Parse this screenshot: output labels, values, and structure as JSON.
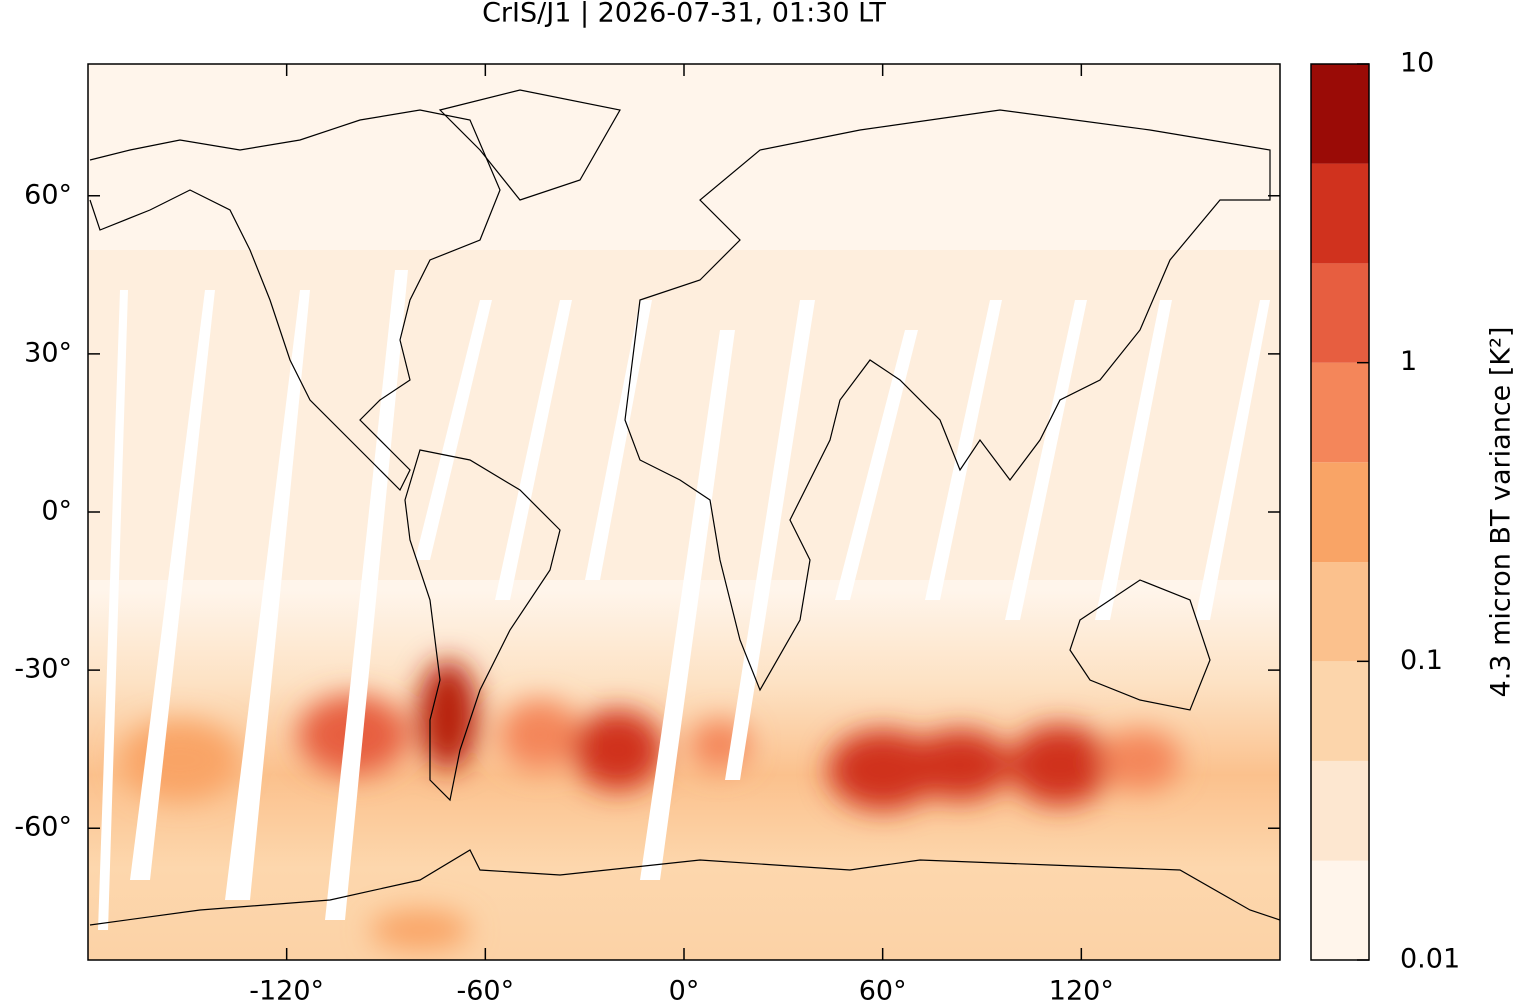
{
  "chart_data": {
    "type": "map",
    "title": "CrIS/J1 | 2026-07-31, 01:30 LT",
    "xlim": [
      -180,
      180
    ],
    "ylim": [
      -85,
      85
    ],
    "xticks": [
      {
        "value": -120,
        "label": "-120°"
      },
      {
        "value": -60,
        "label": "-60°"
      },
      {
        "value": 0,
        "label": "0°"
      },
      {
        "value": 60,
        "label": "60°"
      },
      {
        "value": 120,
        "label": "120°"
      }
    ],
    "yticks": [
      {
        "value": -60,
        "label": "-60°"
      },
      {
        "value": -30,
        "label": "-30°"
      },
      {
        "value": 0,
        "label": "0°"
      },
      {
        "value": 30,
        "label": "30°"
      },
      {
        "value": 60,
        "label": "60°"
      }
    ],
    "colorbar": {
      "label": "4.3 micron BT variance [K²]",
      "log": true,
      "lim": [
        0.01,
        10
      ],
      "ticks": [
        0.01,
        0.1,
        1,
        10
      ],
      "levels": [
        0.01,
        0.0215,
        0.0464,
        0.1,
        0.215,
        0.464,
        1,
        2.15,
        4.64,
        10
      ],
      "colors": [
        "#fff5eb",
        "#fde7d0",
        "#fcd5ab",
        "#fbc18d",
        "#f9a466",
        "#f4865a",
        "#e75e40",
        "#d0321e",
        "#9a0b06"
      ]
    }
  }
}
